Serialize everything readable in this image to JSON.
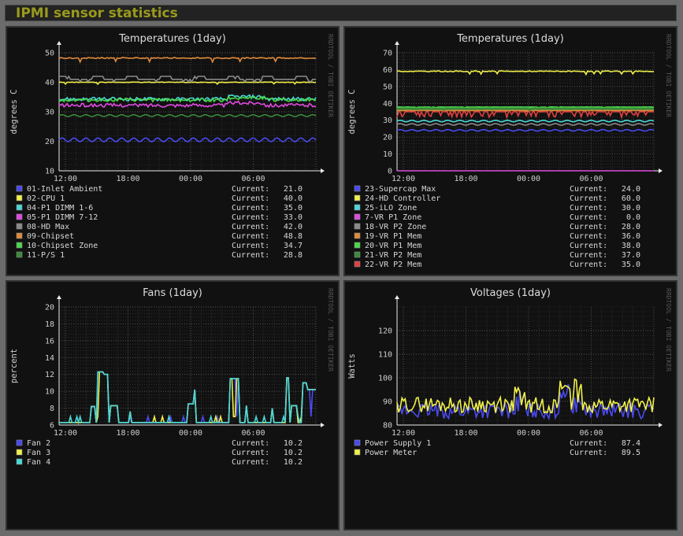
{
  "page_title": "IPMI sensor statistics",
  "side_label": "RRDTOOL / TOBI OETIKER",
  "current_label": "Current:",
  "colors": {
    "background": "#111111",
    "grid": "#5a5a5a",
    "title": "#9a9a1d"
  },
  "chart_data": [
    {
      "type": "line",
      "title": "Temperatures  (1day)",
      "ylabel": "degrees C",
      "ylim": [
        10,
        50
      ],
      "yticks": [
        10,
        20,
        30,
        40,
        50
      ],
      "xticks": [
        "12:00",
        "18:00",
        "00:00",
        "06:00"
      ],
      "grid": true,
      "series": [
        {
          "name": "01-Inlet Ambient",
          "color": "#4a4af0",
          "current": "21.0",
          "base": 20.5,
          "amp": 0.8,
          "style": "wave"
        },
        {
          "name": "02-CPU 1",
          "color": "#f0f04a",
          "current": "40.0",
          "base": 40,
          "amp": 0.3,
          "style": "flat"
        },
        {
          "name": "04-P1 DIMM 1-6",
          "color": "#4ad8d8",
          "current": "35.0",
          "base": 34.3,
          "amp": 1.0,
          "style": "noisy"
        },
        {
          "name": "05-P1 DIMM 7-12",
          "color": "#e04ae0",
          "current": "33.0",
          "base": 32.2,
          "amp": 1.0,
          "style": "noisy"
        },
        {
          "name": "08-HD Max",
          "color": "#8a8a8a",
          "current": "42.0",
          "base": 41,
          "amp": 1.0,
          "style": "step"
        },
        {
          "name": "09-Chipset",
          "color": "#e08a3a",
          "current": "48.8",
          "base": 48.2,
          "amp": 0.6,
          "style": "flat"
        },
        {
          "name": "10-Chipset Zone",
          "color": "#4ad84a",
          "current": "34.7",
          "base": 34.0,
          "amp": 0.9,
          "style": "noisy"
        },
        {
          "name": "11-P/S 1",
          "color": "#3a8a3a",
          "current": "28.8",
          "base": 28.7,
          "amp": 0.4,
          "style": "wave"
        }
      ]
    },
    {
      "type": "line",
      "title": "Temperatures  (1day)",
      "ylabel": "degrees C",
      "ylim": [
        0,
        70
      ],
      "yticks": [
        0,
        10,
        20,
        30,
        40,
        50,
        60,
        70
      ],
      "xticks": [
        "12:00",
        "18:00",
        "00:00",
        "06:00"
      ],
      "grid": true,
      "series": [
        {
          "name": "23-Supercap Max",
          "color": "#4a4af0",
          "current": "24.0",
          "base": 24,
          "amp": 0.6,
          "style": "wave"
        },
        {
          "name": "24-HD Controller",
          "color": "#f0f04a",
          "current": "60.0",
          "base": 59,
          "amp": 0.8,
          "style": "flat"
        },
        {
          "name": "25-iLO Zone",
          "color": "#4ad8d8",
          "current": "30.0",
          "base": 29.5,
          "amp": 0.6,
          "style": "wave"
        },
        {
          "name": "7-VR P1 Zone",
          "color": "#e04ae0",
          "current": "0.0",
          "base": 0,
          "amp": 0,
          "style": "flat"
        },
        {
          "name": "18-VR P2 Zone",
          "color": "#8a8a8a",
          "current": "28.0",
          "base": 27.5,
          "amp": 0.6,
          "style": "wave"
        },
        {
          "name": "19-VR P1 Mem",
          "color": "#e08a3a",
          "current": "36.0",
          "base": 36,
          "amp": 0.3,
          "style": "flat"
        },
        {
          "name": "20-VR P1 Mem",
          "color": "#4ad84a",
          "current": "38.0",
          "base": 37.5,
          "amp": 0.3,
          "style": "flat"
        },
        {
          "name": "21-VR P2 Mem",
          "color": "#3a8a3a",
          "current": "37.0",
          "base": 36.8,
          "amp": 0.3,
          "style": "flat"
        },
        {
          "name": "22-VR P2 Mem",
          "color": "#e04040",
          "current": "35.0",
          "base": 35,
          "amp": 3.0,
          "style": "dips"
        }
      ]
    },
    {
      "type": "line",
      "title": "Fans  (1day)",
      "ylabel": "percent",
      "ylim": [
        6,
        20
      ],
      "yticks": [
        6,
        8,
        10,
        12,
        14,
        16,
        18,
        20
      ],
      "xticks": [
        "12:00",
        "18:00",
        "00:00",
        "06:00"
      ],
      "grid": true,
      "series": [
        {
          "name": "Fan 2",
          "color": "#4a4af0",
          "current": "10.2",
          "base": 6.3,
          "amp": 0,
          "style": "fan"
        },
        {
          "name": "Fan 3",
          "color": "#f0f04a",
          "current": "10.2",
          "base": 6.3,
          "amp": 0,
          "style": "fan"
        },
        {
          "name": "Fan 4",
          "color": "#4ad8d8",
          "current": "10.2",
          "base": 6.3,
          "amp": 0,
          "style": "fan"
        }
      ]
    },
    {
      "type": "line",
      "title": "Voltages  (1day)",
      "ylabel": "Watts",
      "ylim": [
        80,
        130
      ],
      "yticks": [
        80,
        90,
        100,
        110,
        120
      ],
      "xticks": [
        "12:00",
        "18:00",
        "00:00",
        "06:00"
      ],
      "grid": true,
      "series": [
        {
          "name": "Power Supply 1",
          "color": "#4a4af0",
          "current": "87.4",
          "base": 86,
          "amp": 3.0,
          "style": "power"
        },
        {
          "name": "Power Meter",
          "color": "#f0f04a",
          "current": "89.5",
          "base": 88.5,
          "amp": 3.0,
          "style": "power"
        }
      ]
    }
  ]
}
